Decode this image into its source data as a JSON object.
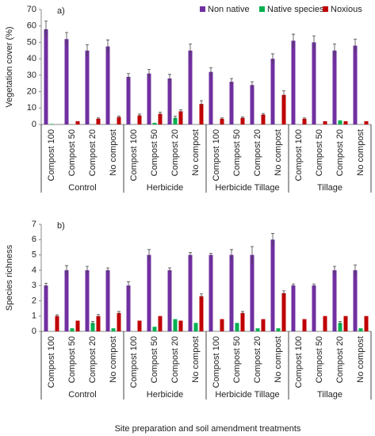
{
  "xlabel": "Site preparation and soil amendment treatments",
  "chart_data": [
    {
      "type": "bar",
      "annotation": "a)",
      "ylabel": "Vegetation cover (%)",
      "categories": [
        "Compost 100",
        "Compost 50",
        "Compost 20",
        "No compost",
        "Compost 100",
        "Compost 50",
        "Compost 20",
        "No compost",
        "Compost 100",
        "Compost 50",
        "Compost 20",
        "No compost",
        "Compost 100",
        "Compost 50",
        "Compost 20",
        "No compost"
      ],
      "groups": [
        "Control",
        "Herbicide",
        "Herbicide Tillage",
        "Tillage"
      ],
      "ylim": [
        0,
        70
      ],
      "yticks": [
        0,
        10,
        20,
        30,
        40,
        50,
        60,
        70
      ],
      "legend": "top-right",
      "series": [
        {
          "name": "Non native",
          "color": "#7030a0",
          "values": [
            58,
            52,
            45,
            47.5,
            29,
            31,
            28,
            45,
            32,
            26,
            24,
            40,
            51,
            50,
            45,
            48
          ],
          "errors": [
            5,
            4,
            3.5,
            4,
            2,
            2.5,
            2.5,
            4,
            2.5,
            2,
            2,
            3,
            4,
            4,
            4,
            4
          ]
        },
        {
          "name": "Native species",
          "color": "#00b050",
          "values": [
            0.3,
            0,
            0,
            0,
            0,
            1,
            4,
            0,
            0,
            0,
            0,
            0,
            0,
            0,
            2.5,
            0
          ],
          "errors": [
            null,
            null,
            null,
            null,
            null,
            null,
            1,
            null,
            null,
            null,
            null,
            null,
            null,
            null,
            null,
            null
          ]
        },
        {
          "name": "Noxious",
          "color": "#c00000",
          "values": [
            0,
            2,
            3.5,
            4.5,
            5.5,
            6.5,
            8,
            12.5,
            3.5,
            4,
            6,
            18,
            3.5,
            2,
            2,
            2
          ],
          "errors": [
            null,
            null,
            0.5,
            0.7,
            0.8,
            1,
            1,
            2,
            0.5,
            0.5,
            0.7,
            2.5,
            0.5,
            null,
            null,
            null
          ]
        }
      ]
    },
    {
      "type": "bar",
      "annotation": "b)",
      "ylabel": "Species richness",
      "categories": [
        "Compost 100",
        "Compost 50",
        "Compost 20",
        "No compost",
        "Compost 100",
        "Compost 50",
        "Compost 20",
        "No compost",
        "Compost 100",
        "Compost 50",
        "Compost 20",
        "No compost",
        "Compost 100",
        "Compost 50",
        "Compost 20",
        "No compost"
      ],
      "groups": [
        "Control",
        "Herbicide",
        "Herbicide Tillage",
        "Tillage"
      ],
      "ylim": [
        0,
        7
      ],
      "yticks": [
        0,
        1,
        2,
        3,
        4,
        5,
        6,
        7
      ],
      "series": [
        {
          "color": "#7030a0",
          "values": [
            3,
            4,
            4,
            4,
            3,
            5,
            4,
            5,
            5,
            5,
            5,
            6,
            3,
            3,
            4,
            4
          ],
          "errors": [
            0.15,
            0.3,
            0.25,
            0.15,
            0.25,
            0.35,
            0.15,
            0.15,
            0.1,
            0.35,
            0.55,
            0.4,
            0.1,
            0.1,
            0.25,
            0.35
          ]
        },
        {
          "color": "#00b050",
          "values": [
            0,
            0.2,
            0.55,
            0.2,
            0,
            0.3,
            0.8,
            0.55,
            0,
            0.55,
            0.2,
            0.2,
            0,
            0,
            0.55,
            0.2
          ],
          "errors": [
            null,
            null,
            0.1,
            null,
            null,
            null,
            null,
            null,
            null,
            null,
            null,
            null,
            null,
            null,
            0.1,
            null
          ]
        },
        {
          "color": "#c00000",
          "values": [
            1,
            0.7,
            1,
            1.2,
            0.7,
            1,
            0.7,
            2.3,
            0.8,
            1.2,
            0.8,
            2.5,
            0.8,
            1,
            1,
            1
          ],
          "errors": [
            0.08,
            null,
            0.1,
            0.1,
            null,
            null,
            null,
            0.15,
            null,
            0.1,
            null,
            0.15,
            null,
            null,
            null,
            null
          ]
        }
      ]
    }
  ]
}
